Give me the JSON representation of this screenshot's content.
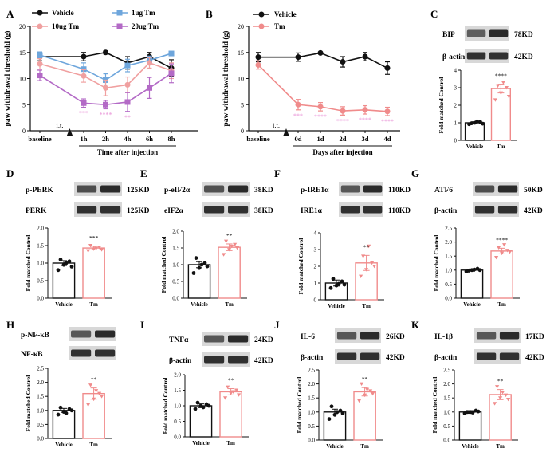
{
  "colors": {
    "vehicle": "#111111",
    "tm": "#f08b8b",
    "tm1": "#6ea6dc",
    "tm10": "#f0a0a0",
    "tm20": "#b36ac6",
    "star": "#e890d6",
    "blot_dark": "#2a2a2a",
    "blot_bg": "#d8d8d8"
  },
  "blot_hint": "western-blot-band",
  "chart_data": [
    {
      "panel": "A",
      "type": "line",
      "x_categories": [
        "baseline",
        "1h",
        "2h",
        "4h",
        "6h",
        "8h"
      ],
      "xlabel": "Time after injection",
      "ylabel": "paw withdrawal threshold (g)",
      "ylim": [
        0,
        20
      ],
      "yticks": [
        "0",
        "5",
        "10",
        "15",
        "20"
      ],
      "marker_label": "i.t.",
      "series": [
        {
          "name": "Vehicle",
          "color_key": "vehicle",
          "marker": "circle",
          "values": [
            14.2,
            14.2,
            15.0,
            13.0,
            14.2,
            12.0
          ],
          "err": [
            0.8,
            0.8,
            0.3,
            1.2,
            0.8,
            1.6
          ]
        },
        {
          "name": "1ug Tm",
          "color_key": "tm1",
          "marker": "square",
          "values": [
            14.5,
            11.8,
            9.7,
            12.5,
            13.5,
            14.8
          ],
          "err": [
            0.6,
            1.2,
            1.2,
            1.2,
            0.8,
            0.4
          ]
        },
        {
          "name": "10ug Tm",
          "color_key": "tm10",
          "marker": "circle",
          "values": [
            12.8,
            10.5,
            8.2,
            8.8,
            13.0,
            11.5
          ],
          "err": [
            1.0,
            1.2,
            1.5,
            1.5,
            1.0,
            1.5
          ]
        },
        {
          "name": "20ug Tm",
          "color_key": "tm20",
          "marker": "square",
          "values": [
            10.6,
            5.3,
            5.0,
            5.5,
            8.2,
            11.0
          ],
          "err": [
            1.0,
            0.8,
            0.8,
            1.8,
            2.0,
            1.8
          ]
        }
      ],
      "stars": [
        "",
        "***",
        "****",
        "**",
        "",
        ""
      ]
    },
    {
      "panel": "B",
      "type": "line",
      "x_categories": [
        "baseline",
        "0d",
        "1d",
        "2d",
        "3d",
        "4d"
      ],
      "xlabel": "Days after injection",
      "ylabel": "paw withdrawal threshold (g)",
      "ylim": [
        0,
        20
      ],
      "yticks": [
        "0",
        "5",
        "10",
        "15",
        "20"
      ],
      "marker_label": "i.t.",
      "series": [
        {
          "name": "Vehicle",
          "color_key": "vehicle",
          "marker": "circle",
          "values": [
            14.1,
            14.1,
            14.9,
            13.2,
            14.2,
            12.0
          ],
          "err": [
            0.9,
            0.8,
            0.2,
            1.0,
            0.8,
            1.2
          ]
        },
        {
          "name": "Tm",
          "color_key": "tm",
          "marker": "circle",
          "values": [
            12.6,
            5.0,
            4.6,
            3.8,
            4.0,
            3.7
          ],
          "err": [
            0.8,
            1.0,
            0.8,
            0.8,
            0.8,
            0.8
          ]
        }
      ],
      "stars": [
        "",
        "***",
        "****",
        "****",
        "****",
        "****"
      ]
    },
    {
      "panel": "C",
      "type": "bar",
      "categories": [
        "Vehicle",
        "Tm"
      ],
      "values": [
        1.0,
        2.95
      ],
      "err": [
        0.06,
        0.25
      ],
      "ylabel": "Fold matched Control",
      "ylim": [
        0,
        4
      ],
      "yticks": [
        "0",
        "1",
        "2",
        "3",
        "4"
      ],
      "sig": "****",
      "blots": [
        {
          "label": "BIP",
          "kd": "78KD",
          "intensity": [
            0.55,
            1.0
          ]
        },
        {
          "label": "β-actin",
          "kd": "42KD",
          "intensity": [
            0.95,
            0.95
          ]
        }
      ],
      "points": [
        [
          0.92,
          1.0,
          1.05,
          0.97,
          1.08,
          0.95
        ],
        [
          2.3,
          2.7,
          3.0,
          3.1,
          3.3,
          2.5
        ]
      ]
    },
    {
      "panel": "D",
      "type": "bar",
      "categories": [
        "Vehicle",
        "Tm"
      ],
      "values": [
        1.0,
        1.43
      ],
      "err": [
        0.07,
        0.05
      ],
      "ylabel": "Fold matched Control",
      "ylim": [
        0,
        2.0
      ],
      "yticks": [
        "0.0",
        "0.5",
        "1.0",
        "1.5",
        "2.0"
      ],
      "sig": "***",
      "blots": [
        {
          "label": "p-PERK",
          "kd": "125KD",
          "intensity": [
            0.7,
            1.0
          ]
        },
        {
          "label": "PERK",
          "kd": "125KD",
          "intensity": [
            0.95,
            0.95
          ]
        }
      ],
      "points": [
        [
          0.8,
          0.95,
          1.05,
          1.1,
          1.0,
          0.9
        ],
        [
          1.35,
          1.4,
          1.45,
          1.5,
          1.42,
          1.38
        ]
      ]
    },
    {
      "panel": "E",
      "type": "bar",
      "categories": [
        "Vehicle",
        "Tm"
      ],
      "values": [
        1.0,
        1.52
      ],
      "err": [
        0.09,
        0.1
      ],
      "ylabel": "Fold matched Control",
      "ylim": [
        0,
        2.0
      ],
      "yticks": [
        "0.0",
        "0.5",
        "1.0",
        "1.5",
        "2.0"
      ],
      "sig": "**",
      "blots": [
        {
          "label": "p-eIF2α",
          "kd": "38KD",
          "intensity": [
            0.65,
            1.0
          ]
        },
        {
          "label": "eIF2α",
          "kd": "38KD",
          "intensity": [
            0.95,
            0.95
          ]
        }
      ],
      "points": [
        [
          0.75,
          0.9,
          1.05,
          1.2,
          1.0,
          0.95
        ],
        [
          1.3,
          1.45,
          1.6,
          1.7,
          1.55,
          1.5
        ]
      ]
    },
    {
      "panel": "F",
      "type": "bar",
      "categories": [
        "Vehicle",
        "Tm"
      ],
      "values": [
        1.0,
        2.2
      ],
      "err": [
        0.18,
        0.45
      ],
      "ylabel": "Fold matched Control",
      "ylim": [
        0,
        4
      ],
      "yticks": [
        "0",
        "1",
        "2",
        "3",
        "4"
      ],
      "sig": "**",
      "blots": [
        {
          "label": "p-IRE1α",
          "kd": "110KD",
          "intensity": [
            0.6,
            1.0
          ]
        },
        {
          "label": "IRE1α",
          "kd": "110KD",
          "intensity": [
            0.95,
            0.95
          ]
        }
      ],
      "points": [
        [
          0.7,
          0.85,
          1.1,
          1.25,
          0.95,
          0.9
        ],
        [
          1.4,
          1.8,
          2.2,
          2.6,
          3.2,
          2.0
        ]
      ]
    },
    {
      "panel": "G",
      "type": "bar",
      "categories": [
        "Vehicle",
        "Tm"
      ],
      "values": [
        1.0,
        1.68
      ],
      "err": [
        0.04,
        0.1
      ],
      "ylabel": "Fold matched Control",
      "ylim": [
        0,
        2.5
      ],
      "yticks": [
        "0.0",
        "0.5",
        "1.0",
        "1.5",
        "2.0",
        "2.5"
      ],
      "sig": "****",
      "blots": [
        {
          "label": "ATF6",
          "kd": "50KD",
          "intensity": [
            0.7,
            1.0
          ]
        },
        {
          "label": "β-actin",
          "kd": "42KD",
          "intensity": [
            0.95,
            0.95
          ]
        }
      ],
      "points": [
        [
          0.95,
          1.0,
          1.05,
          0.98,
          1.02,
          1.0
        ],
        [
          1.45,
          1.6,
          1.7,
          1.8,
          1.9,
          1.65
        ]
      ]
    },
    {
      "panel": "H",
      "type": "bar",
      "categories": [
        "Vehicle",
        "Tm"
      ],
      "values": [
        1.0,
        1.6
      ],
      "err": [
        0.07,
        0.2
      ],
      "ylabel": "Fold matched Control",
      "ylim": [
        0,
        2.5
      ],
      "yticks": [
        "0.0",
        "0.5",
        "1.0",
        "1.5",
        "2.0",
        "2.5"
      ],
      "sig": "**",
      "blots": [
        {
          "label": "p-NF-κB",
          "kd": "",
          "intensity": [
            0.6,
            1.0
          ]
        },
        {
          "label": "NF-κB",
          "kd": "",
          "intensity": [
            0.95,
            0.95
          ]
        }
      ],
      "points": [
        [
          0.85,
          0.95,
          1.05,
          1.1,
          0.9,
          1.0
        ],
        [
          1.2,
          1.4,
          1.6,
          1.9,
          1.7,
          1.5
        ]
      ]
    },
    {
      "panel": "I",
      "type": "bar",
      "categories": [
        "Vehicle",
        "Tm"
      ],
      "values": [
        1.0,
        1.45
      ],
      "err": [
        0.06,
        0.1
      ],
      "ylabel": "Fold matched Control",
      "ylim": [
        0,
        2.0
      ],
      "yticks": [
        "0.0",
        "0.5",
        "1.0",
        "1.5",
        "2.0"
      ],
      "sig": "**",
      "blots": [
        {
          "label": "TNFα",
          "kd": "24KD",
          "intensity": [
            0.6,
            1.0
          ]
        },
        {
          "label": "β-actin",
          "kd": "42KD",
          "intensity": [
            0.95,
            0.95
          ]
        }
      ],
      "points": [
        [
          0.9,
          1.0,
          1.05,
          1.1,
          0.95,
          1.0
        ],
        [
          1.25,
          1.4,
          1.5,
          1.6,
          1.45,
          1.35
        ]
      ]
    },
    {
      "panel": "J",
      "type": "bar",
      "categories": [
        "Vehicle",
        "Tm"
      ],
      "values": [
        1.0,
        1.72
      ],
      "err": [
        0.1,
        0.15
      ],
      "ylabel": "Fold matched Control",
      "ylim": [
        0,
        2.5
      ],
      "yticks": [
        "0.0",
        "0.5",
        "1.0",
        "1.5",
        "2.0",
        "2.5"
      ],
      "sig": "**",
      "blots": [
        {
          "label": "IL-6",
          "kd": "26KD",
          "intensity": [
            0.6,
            1.0
          ]
        },
        {
          "label": "β-actin",
          "kd": "42KD",
          "intensity": [
            0.95,
            0.95
          ]
        }
      ],
      "points": [
        [
          0.75,
          0.9,
          1.05,
          1.2,
          1.0,
          0.95
        ],
        [
          1.4,
          1.6,
          1.75,
          2.0,
          1.8,
          1.65
        ]
      ]
    },
    {
      "panel": "K",
      "type": "bar",
      "categories": [
        "Vehicle",
        "Tm"
      ],
      "values": [
        1.0,
        1.62
      ],
      "err": [
        0.05,
        0.18
      ],
      "ylabel": "Fold matched Control",
      "ylim": [
        0,
        2.5
      ],
      "yticks": [
        "0.0",
        "0.5",
        "1.0",
        "1.5",
        "2.0",
        "2.5"
      ],
      "sig": "**",
      "blots": [
        {
          "label": "IL-1β",
          "kd": "17KD",
          "intensity": [
            0.6,
            1.0
          ]
        },
        {
          "label": "β-actin",
          "kd": "42KD",
          "intensity": [
            0.95,
            0.95
          ]
        }
      ],
      "points": [
        [
          0.95,
          1.0,
          1.05,
          1.0,
          0.98,
          1.02
        ],
        [
          1.3,
          1.5,
          1.6,
          1.9,
          1.7,
          1.45
        ]
      ]
    }
  ]
}
